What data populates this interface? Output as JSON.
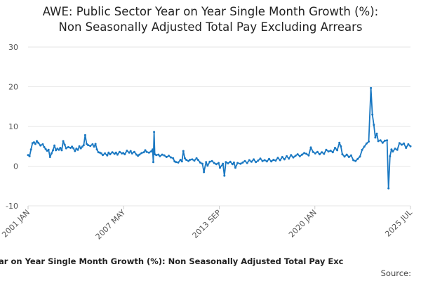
{
  "page": {
    "title_line1": "AWE: Public Sector Year on Year Single Month Growth (%):",
    "title_line2": "Non Seasonally Adjusted Total Pay Excluding Arrears",
    "footer_series_label": "Sector Year on Year Single Month Growth (%): Non Seasonally Adjusted Total Pay Exc",
    "footer_source": "Source:"
  },
  "colors": {
    "line": "#1a78c2",
    "grid": "#e6e6e6",
    "axis_text": "#555555"
  },
  "chart_data": {
    "type": "line",
    "x_tick_labels": [
      "2001 JAN",
      "2007 MAY",
      "2013 SEP",
      "2020 JAN",
      "2025 JUL"
    ],
    "y_tick_labels": [
      "30",
      "20",
      "10",
      "0",
      "-10"
    ],
    "ylim": [
      -10,
      30
    ],
    "grid": true,
    "series": [
      {
        "values": [
          [
            2001.0,
            2.8
          ],
          [
            2001.2,
            2.5
          ],
          [
            2001.4,
            4.2
          ],
          [
            2001.6,
            5.8
          ],
          [
            2001.8,
            6.0
          ],
          [
            2002.0,
            5.6
          ],
          [
            2002.2,
            6.3
          ],
          [
            2002.4,
            5.9
          ],
          [
            2002.7,
            5.2
          ],
          [
            2003.0,
            5.5
          ],
          [
            2003.2,
            4.8
          ],
          [
            2003.4,
            4.3
          ],
          [
            2003.6,
            3.9
          ],
          [
            2003.8,
            4.1
          ],
          [
            2004.0,
            2.3
          ],
          [
            2004.2,
            3.2
          ],
          [
            2004.4,
            4.0
          ],
          [
            2004.6,
            5.2
          ],
          [
            2004.8,
            4.0
          ],
          [
            2005.0,
            4.4
          ],
          [
            2005.2,
            4.1
          ],
          [
            2005.4,
            4.6
          ],
          [
            2005.6,
            4.0
          ],
          [
            2005.8,
            6.3
          ],
          [
            2006.0,
            5.4
          ],
          [
            2006.2,
            4.5
          ],
          [
            2006.5,
            4.8
          ],
          [
            2006.8,
            4.6
          ],
          [
            2007.0,
            4.9
          ],
          [
            2007.2,
            4.5
          ],
          [
            2007.4,
            3.8
          ],
          [
            2007.6,
            4.4
          ],
          [
            2007.8,
            4.1
          ],
          [
            2008.0,
            5.0
          ],
          [
            2008.2,
            4.5
          ],
          [
            2008.4,
            4.9
          ],
          [
            2008.6,
            5.3
          ],
          [
            2008.8,
            7.8
          ],
          [
            2009.0,
            5.6
          ],
          [
            2009.2,
            5.3
          ],
          [
            2009.5,
            5.1
          ],
          [
            2009.8,
            5.5
          ],
          [
            2010.0,
            4.9
          ],
          [
            2010.2,
            5.6
          ],
          [
            2010.4,
            4.2
          ],
          [
            2010.6,
            3.5
          ],
          [
            2010.8,
            3.4
          ],
          [
            2011.0,
            3.2
          ],
          [
            2011.2,
            2.8
          ],
          [
            2011.5,
            3.2
          ],
          [
            2011.8,
            2.7
          ],
          [
            2012.0,
            3.4
          ],
          [
            2012.2,
            3.0
          ],
          [
            2012.5,
            3.5
          ],
          [
            2012.8,
            3.1
          ],
          [
            2013.0,
            3.4
          ],
          [
            2013.2,
            2.9
          ],
          [
            2013.5,
            3.6
          ],
          [
            2013.8,
            3.2
          ],
          [
            2014.0,
            3.3
          ],
          [
            2014.2,
            3.0
          ],
          [
            2014.5,
            3.9
          ],
          [
            2014.8,
            3.4
          ],
          [
            2015.0,
            3.8
          ],
          [
            2015.2,
            3.2
          ],
          [
            2015.5,
            3.6
          ],
          [
            2015.8,
            2.9
          ],
          [
            2016.0,
            2.6
          ],
          [
            2016.2,
            2.9
          ],
          [
            2016.5,
            3.3
          ],
          [
            2016.8,
            3.5
          ],
          [
            2017.0,
            4.0
          ],
          [
            2017.2,
            3.6
          ],
          [
            2017.5,
            3.4
          ],
          [
            2017.8,
            3.7
          ],
          [
            2018.0,
            4.2
          ],
          [
            2018.1,
            1.0
          ],
          [
            2018.2,
            8.6
          ],
          [
            2018.3,
            3.0
          ],
          [
            2018.5,
            2.8
          ],
          [
            2018.8,
            2.9
          ],
          [
            2019.0,
            2.5
          ],
          [
            2019.3,
            2.9
          ],
          [
            2019.6,
            2.7
          ],
          [
            2019.9,
            2.3
          ],
          [
            2020.2,
            2.6
          ],
          [
            2020.5,
            2.2
          ],
          [
            2020.8,
            2.0
          ],
          [
            2021.0,
            1.2
          ],
          [
            2021.2,
            1.0
          ],
          [
            2021.5,
            0.9
          ],
          [
            2021.8,
            1.6
          ],
          [
            2022.0,
            1.2
          ],
          [
            2022.2,
            3.8
          ],
          [
            2022.4,
            2.0
          ],
          [
            2022.6,
            1.6
          ],
          [
            2022.9,
            1.3
          ],
          [
            2023.1,
            1.6
          ],
          [
            2023.4,
            1.7
          ],
          [
            2023.7,
            1.4
          ],
          [
            2024.0,
            2.0
          ],
          [
            2024.2,
            1.6
          ],
          [
            2024.5,
            0.9
          ],
          [
            2024.8,
            0.6
          ],
          [
            2025.0,
            -1.5
          ],
          [
            2025.3,
            1.0
          ],
          [
            2025.5,
            0.1
          ],
          [
            2025.8,
            1.1
          ],
          [
            2026.1,
            1.3
          ],
          [
            2026.4,
            0.8
          ],
          [
            2026.7,
            0.5
          ],
          [
            2027.0,
            0.8
          ],
          [
            2027.2,
            -0.4
          ],
          [
            2027.6,
            0.6
          ],
          [
            2027.8,
            -2.4
          ],
          [
            2028.0,
            1.0
          ],
          [
            2028.3,
            0.7
          ],
          [
            2028.6,
            1.1
          ],
          [
            2028.9,
            0.5
          ],
          [
            2029.1,
            0.9
          ],
          [
            2029.3,
            -0.4
          ],
          [
            2029.6,
            0.8
          ],
          [
            2030.0,
            0.6
          ],
          [
            2030.3,
            0.9
          ],
          [
            2030.6,
            1.3
          ],
          [
            2030.9,
            0.8
          ],
          [
            2031.2,
            1.5
          ],
          [
            2031.5,
            1.1
          ],
          [
            2031.8,
            1.7
          ],
          [
            2032.1,
            1.0
          ],
          [
            2032.4,
            1.4
          ],
          [
            2032.7,
            1.9
          ],
          [
            2033.0,
            1.3
          ],
          [
            2033.3,
            1.5
          ],
          [
            2033.6,
            1.2
          ],
          [
            2033.9,
            1.8
          ],
          [
            2034.2,
            1.2
          ],
          [
            2034.5,
            1.6
          ],
          [
            2034.8,
            1.4
          ],
          [
            2035.1,
            2.1
          ],
          [
            2035.4,
            1.5
          ],
          [
            2035.7,
            2.3
          ],
          [
            2036.0,
            1.7
          ],
          [
            2036.3,
            2.5
          ],
          [
            2036.6,
            1.9
          ],
          [
            2036.9,
            2.8
          ],
          [
            2037.2,
            2.2
          ],
          [
            2037.5,
            2.6
          ],
          [
            2037.8,
            3.0
          ],
          [
            2038.1,
            2.5
          ],
          [
            2038.4,
            2.9
          ],
          [
            2038.7,
            3.3
          ],
          [
            2039.0,
            3.1
          ],
          [
            2039.3,
            2.7
          ],
          [
            2039.6,
            4.7
          ],
          [
            2039.9,
            3.6
          ],
          [
            2040.2,
            3.2
          ],
          [
            2040.5,
            3.6
          ],
          [
            2040.8,
            3.0
          ],
          [
            2041.1,
            3.5
          ],
          [
            2041.4,
            3.1
          ],
          [
            2041.7,
            4.1
          ],
          [
            2042.0,
            3.7
          ],
          [
            2042.3,
            3.9
          ],
          [
            2042.6,
            3.5
          ],
          [
            2042.9,
            4.6
          ],
          [
            2043.2,
            4.0
          ],
          [
            2043.5,
            5.9
          ],
          [
            2043.7,
            5.0
          ],
          [
            2043.9,
            3.0
          ],
          [
            2044.2,
            2.4
          ],
          [
            2044.5,
            2.9
          ],
          [
            2044.8,
            2.3
          ],
          [
            2045.1,
            2.7
          ],
          [
            2045.4,
            1.5
          ],
          [
            2045.7,
            1.3
          ],
          [
            2046.0,
            1.8
          ],
          [
            2046.3,
            2.4
          ],
          [
            2046.6,
            4.1
          ],
          [
            2046.9,
            4.9
          ],
          [
            2047.2,
            5.7
          ],
          [
            2047.5,
            6.2
          ],
          [
            2047.8,
            19.7
          ],
          [
            2048.0,
            13.0
          ],
          [
            2048.2,
            10.4
          ],
          [
            2048.4,
            7.2
          ],
          [
            2048.6,
            8.2
          ],
          [
            2048.8,
            6.3
          ],
          [
            2049.1,
            6.5
          ],
          [
            2049.4,
            5.9
          ],
          [
            2049.7,
            6.4
          ],
          [
            2050.0,
            6.5
          ],
          [
            2050.2,
            -5.6
          ],
          [
            2050.4,
            2.5
          ],
          [
            2050.6,
            4.2
          ],
          [
            2050.8,
            3.7
          ],
          [
            2051.1,
            4.4
          ],
          [
            2051.4,
            4.1
          ],
          [
            2051.7,
            5.8
          ],
          [
            2052.0,
            5.4
          ],
          [
            2052.3,
            5.7
          ],
          [
            2052.6,
            4.6
          ],
          [
            2052.9,
            5.5
          ],
          [
            2053.2,
            5.0
          ]
        ]
      }
    ]
  }
}
